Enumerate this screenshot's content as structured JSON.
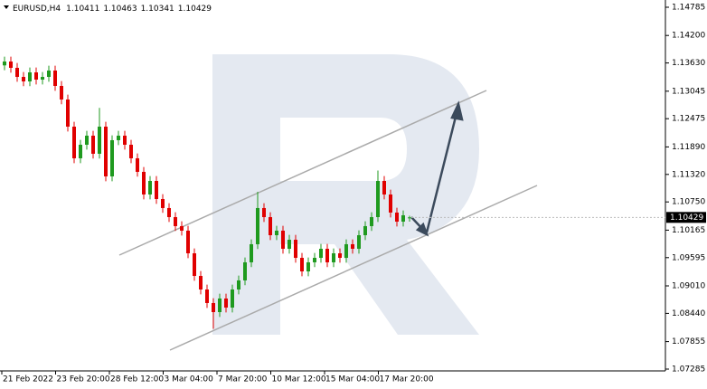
{
  "chart_data": {
    "type": "candlestick",
    "symbol": "EURUSD,H4",
    "header_ohlc": [
      1.10411,
      1.10463,
      1.10341,
      1.10429
    ],
    "up_color": "#1f9a1f",
    "down_color": "#e00000",
    "ylim": [
      1.07285,
      1.14785
    ],
    "yticks": [
      1.14785,
      {
        "value": 1.142,
        "label": "1.14200"
      },
      {
        "value": 1.1363,
        "label": "1.13630"
      },
      1.13045,
      1.12475,
      {
        "value": 1.1189,
        "label": "1.11890"
      },
      {
        "value": 1.1132,
        "label": "1.11320"
      },
      {
        "value": 1.1075,
        "label": "1.10750"
      },
      1.10165,
      1.09595,
      {
        "value": 1.0901,
        "label": "1.09010"
      },
      {
        "value": 1.0844,
        "label": "1.08440"
      },
      1.07855,
      1.07285
    ],
    "xlabels": [
      "21 Feb 2022",
      "23 Feb 20:00",
      "28 Feb 12:00",
      "3 Mar 04:00",
      "7 Mar 20:00",
      "10 Mar 12:00",
      "15 Mar 04:00",
      "17 Mar 20:00"
    ],
    "open": [
      1.1358,
      1.1366,
      1.13529,
      1.13341,
      1.13248,
      1.13435,
      1.13285,
      1.13341,
      1.13473,
      1.13154,
      1.12873,
      1.1231,
      1.11654,
      1.11935,
      1.12123,
      1.11748,
      1.1231,
      1.11279,
      1.12029,
      1.12123,
      1.11935,
      1.11654,
      1.11373,
      1.10904,
      1.11185,
      1.1081,
      1.10623,
      1.10435,
      1.10248,
      1.10154,
      1.09685,
      1.09216,
      1.08935,
      1.08654,
      1.08466,
      1.08748,
      1.0856,
      1.08935,
      1.09123,
      1.09498,
      1.09873,
      1.10623,
      1.10435,
      1.1006,
      1.10154,
      1.09779,
      1.09966,
      1.09591,
      1.0931,
      1.09498,
      1.09591,
      1.09779,
      1.09498,
      1.09685,
      1.09591,
      1.09873,
      1.09779,
      1.1006,
      1.10248,
      1.10435,
      1.11185,
      1.10904,
      1.10529,
      1.10341,
      1.10411
    ],
    "high": [
      1.1376,
      1.1376,
      1.13629,
      1.13441,
      1.13535,
      1.13535,
      1.13441,
      1.13573,
      1.13573,
      1.13254,
      1.12973,
      1.1241,
      1.12035,
      1.12223,
      1.12223,
      1.127,
      1.1241,
      1.12129,
      1.12223,
      1.12223,
      1.12035,
      1.11754,
      1.11473,
      1.11285,
      1.11285,
      1.1091,
      1.10723,
      1.10535,
      1.10348,
      1.10254,
      1.09785,
      1.09316,
      1.09035,
      1.08754,
      1.08848,
      1.08848,
      1.09035,
      1.09223,
      1.09598,
      1.09973,
      1.1096,
      1.10723,
      1.10535,
      1.10254,
      1.10254,
      1.10066,
      1.10066,
      1.09691,
      1.09598,
      1.09691,
      1.09879,
      1.09879,
      1.09785,
      1.09785,
      1.09973,
      1.09973,
      1.1016,
      1.10348,
      1.10535,
      1.114,
      1.11285,
      1.11004,
      1.10629,
      1.10573,
      1.10463
    ],
    "low": [
      1.1348,
      1.13429,
      1.13241,
      1.13148,
      1.13148,
      1.13185,
      1.13185,
      1.13241,
      1.13054,
      1.12773,
      1.1221,
      1.11554,
      1.11554,
      1.11835,
      1.11648,
      1.11648,
      1.11179,
      1.11179,
      1.11929,
      1.11835,
      1.11554,
      1.11273,
      1.10804,
      1.10804,
      1.1071,
      1.10523,
      1.10335,
      1.10148,
      1.10054,
      1.09585,
      1.09116,
      1.08835,
      1.08554,
      1.0812,
      1.08366,
      1.0846,
      1.0846,
      1.08835,
      1.09023,
      1.09398,
      1.09773,
      1.10335,
      1.0996,
      1.0996,
      1.09679,
      1.09679,
      1.09491,
      1.0921,
      1.0921,
      1.09398,
      1.09491,
      1.09398,
      1.09398,
      1.09491,
      1.09491,
      1.09679,
      1.09679,
      1.0996,
      1.10148,
      1.10335,
      1.10804,
      1.10429,
      1.10241,
      1.10241,
      1.10341
    ],
    "close": [
      1.1366,
      1.13529,
      1.13341,
      1.13248,
      1.13435,
      1.13285,
      1.13341,
      1.13473,
      1.13154,
      1.12873,
      1.1231,
      1.11654,
      1.11935,
      1.12123,
      1.11748,
      1.1231,
      1.11279,
      1.12029,
      1.12123,
      1.11935,
      1.11654,
      1.11373,
      1.10904,
      1.11185,
      1.1081,
      1.10623,
      1.10435,
      1.10248,
      1.10154,
      1.09685,
      1.09216,
      1.08935,
      1.08654,
      1.08466,
      1.08748,
      1.0856,
      1.08935,
      1.09123,
      1.09498,
      1.09873,
      1.10623,
      1.10435,
      1.1006,
      1.10154,
      1.09779,
      1.09966,
      1.09591,
      1.0931,
      1.09498,
      1.09591,
      1.09779,
      1.09498,
      1.09685,
      1.09591,
      1.09873,
      1.09779,
      1.1006,
      1.10248,
      1.10435,
      1.11185,
      1.10904,
      1.10529,
      1.10341,
      1.10473,
      1.10429
    ]
  }
}
